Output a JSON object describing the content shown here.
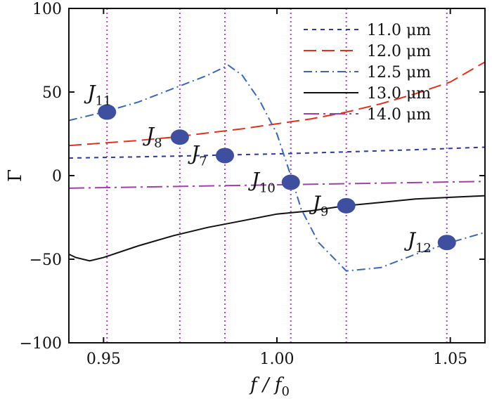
{
  "chart_data": {
    "type": "line",
    "xlabel": "f / f0",
    "ylabel": "Γ",
    "xlim": [
      0.94,
      1.06
    ],
    "ylim": [
      -100,
      100
    ],
    "xticks": [
      0.95,
      1.0,
      1.05
    ],
    "xtick_labels": [
      "0.95",
      "1.00",
      "1.05"
    ],
    "yticks": [
      -100,
      -50,
      0,
      50,
      100
    ],
    "ytick_labels": [
      "−100",
      "−50",
      "0",
      "50",
      "100"
    ],
    "legend_position": "top-right",
    "series": [
      {
        "name": "11.0 μm",
        "color": "#2b3a9e",
        "dash": "short-dash",
        "points": [
          [
            0.94,
            10.5
          ],
          [
            0.96,
            11.2
          ],
          [
            0.98,
            12.1
          ],
          [
            1.0,
            13.0
          ],
          [
            1.02,
            14.2
          ],
          [
            1.04,
            15.5
          ],
          [
            1.06,
            17.0
          ]
        ]
      },
      {
        "name": "12.0 μm",
        "color": "#e0321f",
        "dash": "long-dash",
        "points": [
          [
            0.94,
            18
          ],
          [
            0.95,
            19.5
          ],
          [
            0.96,
            21
          ],
          [
            0.97,
            23
          ],
          [
            0.98,
            25.5
          ],
          [
            0.99,
            28
          ],
          [
            1.0,
            31
          ],
          [
            1.01,
            34
          ],
          [
            1.02,
            38
          ],
          [
            1.03,
            43
          ],
          [
            1.04,
            49
          ],
          [
            1.05,
            56
          ],
          [
            1.06,
            68
          ]
        ]
      },
      {
        "name": "12.5 μm",
        "color": "#3a66b8",
        "dash": "dash-dot",
        "points": [
          [
            0.94,
            33
          ],
          [
            0.95,
            38
          ],
          [
            0.96,
            44
          ],
          [
            0.97,
            52
          ],
          [
            0.98,
            60
          ],
          [
            0.986,
            66
          ],
          [
            0.99,
            60
          ],
          [
            0.995,
            45
          ],
          [
            1.0,
            25
          ],
          [
            1.004,
            0
          ],
          [
            1.007,
            -20
          ],
          [
            1.012,
            -40
          ],
          [
            1.02,
            -57
          ],
          [
            1.03,
            -55
          ],
          [
            1.04,
            -47
          ],
          [
            1.05,
            -40
          ],
          [
            1.06,
            -34
          ]
        ]
      },
      {
        "name": "13.0 μm",
        "color": "#111111",
        "dash": "solid",
        "points": [
          [
            0.94,
            -47
          ],
          [
            0.942,
            -49
          ],
          [
            0.946,
            -51
          ],
          [
            0.95,
            -49
          ],
          [
            0.96,
            -42
          ],
          [
            0.97,
            -36
          ],
          [
            0.98,
            -31
          ],
          [
            0.99,
            -27
          ],
          [
            1.0,
            -23
          ],
          [
            1.01,
            -21
          ],
          [
            1.02,
            -18
          ],
          [
            1.03,
            -16
          ],
          [
            1.04,
            -14
          ],
          [
            1.05,
            -13
          ],
          [
            1.06,
            -12
          ]
        ]
      },
      {
        "name": "14.0 μm",
        "color": "#a040a8",
        "dash": "long-dash-dot",
        "points": [
          [
            0.94,
            -7.5
          ],
          [
            0.97,
            -6.5
          ],
          [
            1.0,
            -5.5
          ],
          [
            1.03,
            -4.5
          ],
          [
            1.06,
            -3.5
          ]
        ]
      }
    ],
    "markers": [
      {
        "label": "J",
        "sub": "11",
        "x": 0.951,
        "y": 38,
        "label_side": "above-left"
      },
      {
        "label": "J",
        "sub": "8",
        "x": 0.972,
        "y": 23,
        "label_side": "left"
      },
      {
        "label": "J",
        "sub": "7",
        "x": 0.985,
        "y": 12,
        "label_side": "left"
      },
      {
        "label": "J",
        "sub": "10",
        "x": 1.004,
        "y": -4,
        "label_side": "left"
      },
      {
        "label": "J",
        "sub": "9",
        "x": 1.02,
        "y": -18,
        "label_side": "left"
      },
      {
        "label": "J",
        "sub": "12",
        "x": 1.049,
        "y": -40,
        "label_side": "left"
      }
    ],
    "vertical_lines": [
      0.951,
      0.972,
      0.985,
      1.004,
      1.02,
      1.049
    ],
    "vertical_line_color": "#b040c8",
    "marker_color": "#3d4f9e"
  }
}
